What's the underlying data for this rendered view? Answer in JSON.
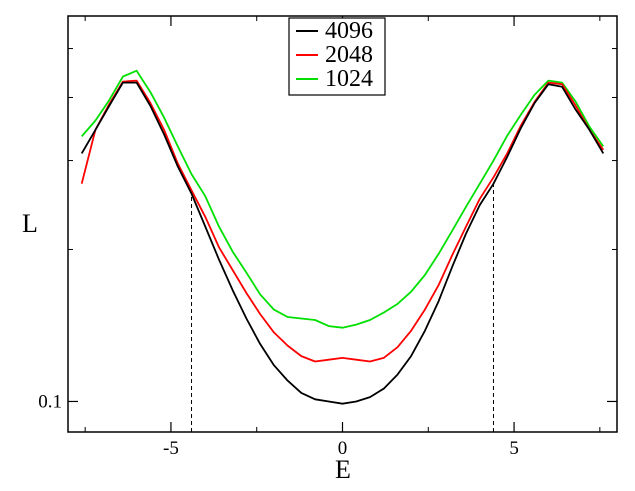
{
  "chart_data": {
    "type": "line",
    "xlabel": "E",
    "ylabel": "L",
    "y_scale": "log",
    "xlim": [
      -8,
      8
    ],
    "ylim": [
      0.087,
      0.58
    ],
    "x_ticks": [
      -5,
      0,
      5
    ],
    "x_tick_labels": [
      "-5",
      "0",
      "5"
    ],
    "y_ticks": [
      0.1
    ],
    "y_tick_labels": [
      "0.1"
    ],
    "grid": false,
    "legend_position": "top-center",
    "vertical_markers": [
      -4.4,
      4.4
    ],
    "x": [
      -7.6,
      -7.2,
      -6.8,
      -6.4,
      -6.0,
      -5.6,
      -5.2,
      -4.8,
      -4.4,
      -4.0,
      -3.6,
      -3.2,
      -2.8,
      -2.4,
      -2.0,
      -1.6,
      -1.2,
      -0.8,
      -0.4,
      0.0,
      0.4,
      0.8,
      1.2,
      1.6,
      2.0,
      2.4,
      2.8,
      3.2,
      3.6,
      4.0,
      4.4,
      4.8,
      5.2,
      5.6,
      6.0,
      6.4,
      6.8,
      7.2,
      7.6
    ],
    "series": [
      {
        "name": "4096",
        "color": "#000000",
        "values": [
          0.31,
          0.345,
          0.385,
          0.428,
          0.428,
          0.385,
          0.338,
          0.292,
          0.258,
          0.222,
          0.191,
          0.166,
          0.146,
          0.13,
          0.118,
          0.11,
          0.104,
          0.101,
          0.1,
          0.099,
          0.1,
          0.102,
          0.106,
          0.113,
          0.123,
          0.138,
          0.158,
          0.185,
          0.215,
          0.245,
          0.27,
          0.305,
          0.348,
          0.39,
          0.425,
          0.42,
          0.378,
          0.345,
          0.31
        ]
      },
      {
        "name": "2048",
        "color": "#ff0000",
        "values": [
          0.27,
          0.345,
          0.388,
          0.43,
          0.432,
          0.39,
          0.345,
          0.296,
          0.262,
          0.232,
          0.202,
          0.182,
          0.164,
          0.149,
          0.137,
          0.129,
          0.123,
          0.12,
          0.121,
          0.122,
          0.121,
          0.12,
          0.122,
          0.128,
          0.138,
          0.152,
          0.17,
          0.195,
          0.222,
          0.252,
          0.278,
          0.31,
          0.352,
          0.392,
          0.428,
          0.425,
          0.385,
          0.345,
          0.315
        ]
      },
      {
        "name": "1024",
        "color": "#00e000",
        "values": [
          0.335,
          0.36,
          0.395,
          0.44,
          0.452,
          0.41,
          0.365,
          0.32,
          0.282,
          0.255,
          0.222,
          0.198,
          0.18,
          0.163,
          0.152,
          0.147,
          0.146,
          0.145,
          0.141,
          0.14,
          0.142,
          0.145,
          0.15,
          0.156,
          0.165,
          0.178,
          0.196,
          0.218,
          0.243,
          0.27,
          0.3,
          0.336,
          0.37,
          0.405,
          0.432,
          0.428,
          0.392,
          0.35,
          0.32
        ]
      }
    ]
  }
}
